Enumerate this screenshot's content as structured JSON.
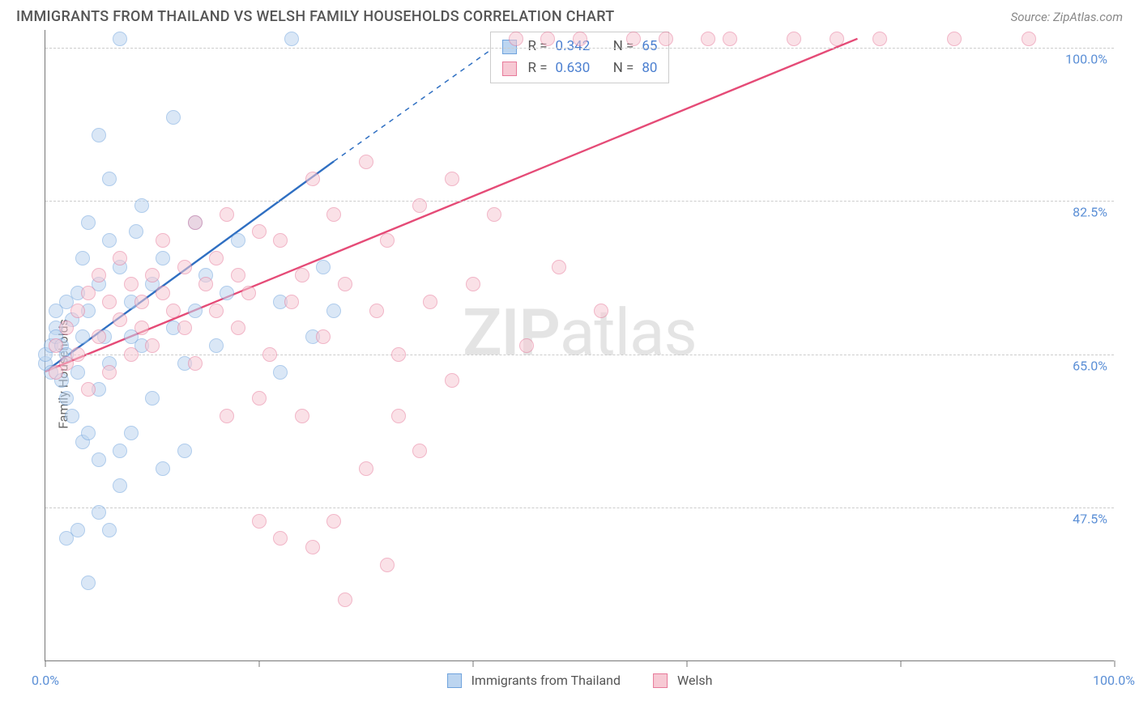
{
  "title": "IMMIGRANTS FROM THAILAND VS WELSH FAMILY HOUSEHOLDS CORRELATION CHART",
  "source": "Source: ZipAtlas.com",
  "ylabel": "Family Households",
  "watermark_a": "ZIP",
  "watermark_b": "atlas",
  "chart": {
    "type": "scatter",
    "background_color": "#ffffff",
    "grid_color": "#cccccc",
    "axis_color": "#777777",
    "tick_label_color": "#5b8fd6",
    "point_radius": 9,
    "point_opacity": 0.55,
    "xlim": [
      0,
      100
    ],
    "ylim": [
      30,
      102
    ],
    "x_ticks": [
      0,
      20,
      40,
      60,
      80,
      100
    ],
    "x_tick_labels": {
      "0": "0.0%",
      "100": "100.0%"
    },
    "y_gridlines": [
      47.5,
      65.0,
      82.5,
      100.0
    ],
    "y_tick_labels": [
      "47.5%",
      "65.0%",
      "82.5%",
      "100.0%"
    ]
  },
  "series": [
    {
      "key": "thailand",
      "label": "Immigrants from Thailand",
      "fill": "#bcd5f0",
      "stroke": "#6fa3dd",
      "line_color": "#2f6fc2",
      "line_width": 2.4,
      "R_label": "R =",
      "R": "0.342",
      "N_label": "N =",
      "N": "65",
      "trend": {
        "x1": 0,
        "y1": 63,
        "x2_solid": 27,
        "y2_solid": 87,
        "x2": 42,
        "y2": 100
      },
      "points": [
        [
          0,
          64
        ],
        [
          0,
          65
        ],
        [
          0.5,
          66
        ],
        [
          0.5,
          63
        ],
        [
          1,
          68
        ],
        [
          1,
          70
        ],
        [
          1,
          67
        ],
        [
          1.5,
          62
        ],
        [
          1.5,
          66
        ],
        [
          2,
          65
        ],
        [
          2,
          71
        ],
        [
          2,
          60
        ],
        [
          2.5,
          69
        ],
        [
          2.5,
          58
        ],
        [
          3,
          72
        ],
        [
          3,
          63
        ],
        [
          3.5,
          67
        ],
        [
          3.5,
          76
        ],
        [
          3.5,
          55
        ],
        [
          4,
          80
        ],
        [
          4,
          70
        ],
        [
          4,
          56
        ],
        [
          5,
          61
        ],
        [
          5,
          90
        ],
        [
          5,
          73
        ],
        [
          5.5,
          67
        ],
        [
          6,
          78
        ],
        [
          6,
          85
        ],
        [
          6,
          64
        ],
        [
          7,
          54
        ],
        [
          7,
          101
        ],
        [
          7,
          75
        ],
        [
          8,
          71
        ],
        [
          8,
          67
        ],
        [
          8.5,
          79
        ],
        [
          9,
          82
        ],
        [
          9,
          66
        ],
        [
          10,
          73
        ],
        [
          10,
          60
        ],
        [
          11,
          76
        ],
        [
          12,
          92
        ],
        [
          12,
          68
        ],
        [
          13,
          64
        ],
        [
          14,
          80
        ],
        [
          14,
          70
        ],
        [
          15,
          74
        ],
        [
          16,
          66
        ],
        [
          17,
          72
        ],
        [
          18,
          78
        ],
        [
          2,
          44
        ],
        [
          3,
          45
        ],
        [
          4,
          39
        ],
        [
          5,
          47
        ],
        [
          5,
          53
        ],
        [
          6,
          45
        ],
        [
          7,
          50
        ],
        [
          8,
          56
        ],
        [
          11,
          52
        ],
        [
          13,
          54
        ],
        [
          22,
          63
        ],
        [
          22,
          71
        ],
        [
          23,
          101
        ],
        [
          25,
          67
        ],
        [
          26,
          75
        ],
        [
          27,
          70
        ]
      ]
    },
    {
      "key": "welsh",
      "label": "Welsh",
      "fill": "#f7c9d4",
      "stroke": "#e77a9a",
      "line_color": "#e54b77",
      "line_width": 2.4,
      "R_label": "R =",
      "R": "0.630",
      "N_label": "N =",
      "N": "80",
      "trend": {
        "x1": 0,
        "y1": 63,
        "x2_solid": 76,
        "y2_solid": 101,
        "x2": 76,
        "y2": 101
      },
      "points": [
        [
          1,
          63
        ],
        [
          1,
          66
        ],
        [
          2,
          64
        ],
        [
          2,
          68
        ],
        [
          3,
          65
        ],
        [
          3,
          70
        ],
        [
          4,
          72
        ],
        [
          4,
          61
        ],
        [
          5,
          67
        ],
        [
          5,
          74
        ],
        [
          6,
          71
        ],
        [
          6,
          63
        ],
        [
          7,
          69
        ],
        [
          7,
          76
        ],
        [
          8,
          65
        ],
        [
          8,
          73
        ],
        [
          9,
          71
        ],
        [
          9,
          68
        ],
        [
          10,
          74
        ],
        [
          10,
          66
        ],
        [
          11,
          72
        ],
        [
          11,
          78
        ],
        [
          12,
          70
        ],
        [
          13,
          75
        ],
        [
          13,
          68
        ],
        [
          14,
          80
        ],
        [
          14,
          64
        ],
        [
          15,
          73
        ],
        [
          16,
          76
        ],
        [
          16,
          70
        ],
        [
          17,
          81
        ],
        [
          18,
          74
        ],
        [
          18,
          68
        ],
        [
          19,
          72
        ],
        [
          20,
          79
        ],
        [
          21,
          65
        ],
        [
          22,
          78
        ],
        [
          23,
          71
        ],
        [
          24,
          74
        ],
        [
          25,
          85
        ],
        [
          26,
          67
        ],
        [
          27,
          81
        ],
        [
          28,
          73
        ],
        [
          30,
          87
        ],
        [
          31,
          70
        ],
        [
          32,
          78
        ],
        [
          33,
          65
        ],
        [
          35,
          82
        ],
        [
          36,
          71
        ],
        [
          38,
          85
        ],
        [
          40,
          73
        ],
        [
          42,
          81
        ],
        [
          44,
          101
        ],
        [
          45,
          66
        ],
        [
          47,
          101
        ],
        [
          48,
          75
        ],
        [
          50,
          101
        ],
        [
          52,
          70
        ],
        [
          55,
          101
        ],
        [
          58,
          101
        ],
        [
          62,
          101
        ],
        [
          64,
          101
        ],
        [
          70,
          101
        ],
        [
          74,
          101
        ],
        [
          78,
          101
        ],
        [
          85,
          101
        ],
        [
          92,
          101
        ],
        [
          17,
          58
        ],
        [
          20,
          46
        ],
        [
          22,
          44
        ],
        [
          24,
          58
        ],
        [
          25,
          43
        ],
        [
          27,
          46
        ],
        [
          28,
          37
        ],
        [
          30,
          52
        ],
        [
          32,
          41
        ],
        [
          33,
          58
        ],
        [
          35,
          54
        ],
        [
          20,
          60
        ],
        [
          38,
          62
        ]
      ]
    }
  ],
  "legend_bottom": [
    {
      "swatch_fill": "#bcd5f0",
      "swatch_stroke": "#6fa3dd",
      "label": "Immigrants from Thailand"
    },
    {
      "swatch_fill": "#f7c9d4",
      "swatch_stroke": "#e77a9a",
      "label": "Welsh"
    }
  ]
}
